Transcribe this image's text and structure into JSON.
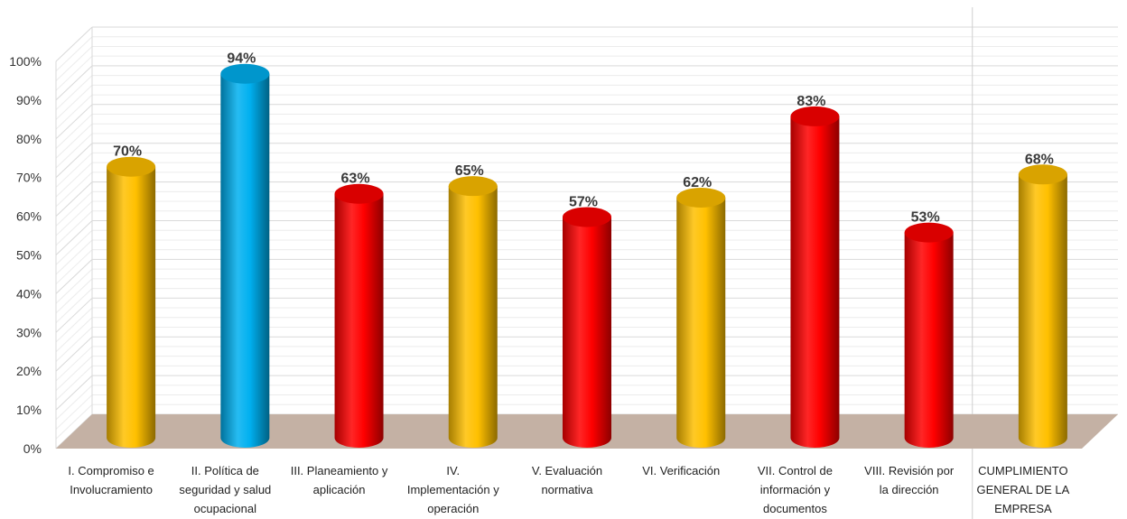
{
  "chart_data": {
    "type": "bar",
    "style": "3d-cylinder",
    "categories": [
      [
        "I. Compromiso e",
        "Involucramiento"
      ],
      [
        "II. Política de",
        "seguridad y salud",
        "ocupacional"
      ],
      [
        "III. Planeamiento y",
        "aplicación"
      ],
      [
        "IV.",
        "Implementación y",
        "operación"
      ],
      [
        "V. Evaluación",
        "normativa"
      ],
      [
        "VI. Verificación"
      ],
      [
        "VII. Control de",
        "información y",
        "documentos"
      ],
      [
        "VIII. Revisión por",
        "la dirección"
      ],
      [
        "CUMPLIMIENTO",
        "GENERAL DE LA",
        "EMPRESA"
      ]
    ],
    "values": [
      70,
      94,
      63,
      65,
      57,
      62,
      83,
      53,
      68
    ],
    "data_labels": [
      "70%",
      "94%",
      "63%",
      "65%",
      "57%",
      "62%",
      "83%",
      "53%",
      "68%"
    ],
    "bar_colors": [
      "#ffc000",
      "#00b0f0",
      "#ff0000",
      "#ffc000",
      "#ff0000",
      "#ffc000",
      "#ff0000",
      "#ff0000",
      "#ffc000"
    ],
    "ylim": [
      0,
      100
    ],
    "y_ticks": [
      "0%",
      "10%",
      "20%",
      "30%",
      "40%",
      "50%",
      "60%",
      "70%",
      "80%",
      "90%",
      "100%"
    ],
    "grid": true,
    "floor_color": "#c4b1a4",
    "title": "",
    "xlabel": "",
    "ylabel": ""
  }
}
